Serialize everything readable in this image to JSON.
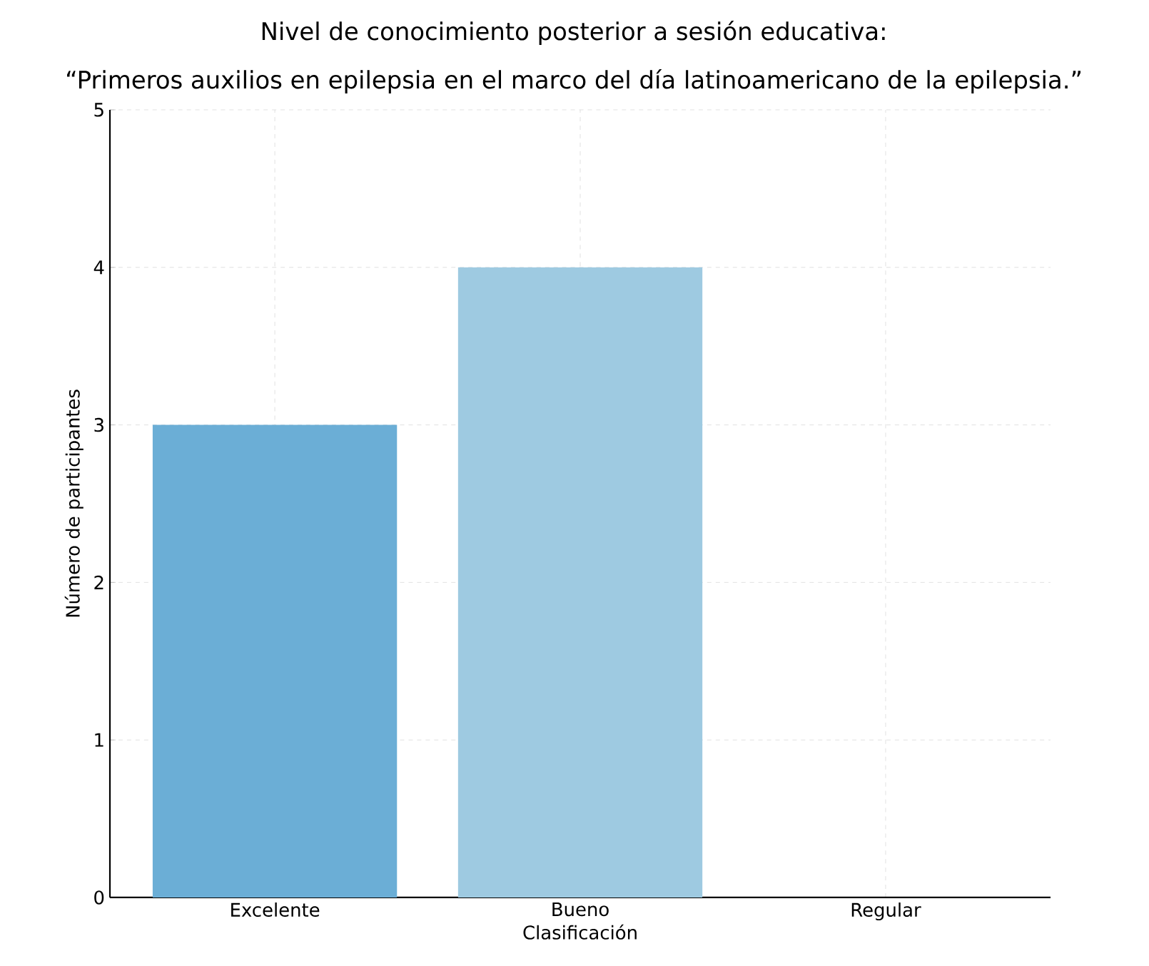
{
  "chart_data": {
    "type": "bar",
    "title": "Nivel de conocimiento posterior a sesión educativa:",
    "subtitle": "“Primeros auxilios en epilepsia en el marco del día latinoamericano de la epilepsia.”",
    "xlabel": "Clasificación",
    "ylabel": "Número de participantes",
    "categories": [
      "Excelente",
      "Bueno",
      "Regular"
    ],
    "values": [
      3,
      4,
      0
    ],
    "colors": [
      "#6baed6",
      "#9ecae1",
      "#c6dbef"
    ],
    "ylim": [
      0,
      5
    ],
    "yticks": [
      0,
      1,
      2,
      3,
      4,
      5
    ],
    "grid": true
  }
}
